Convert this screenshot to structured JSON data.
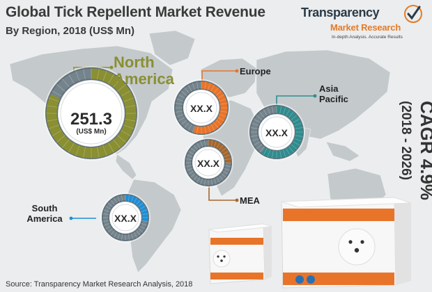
{
  "header": {
    "title": "Global Tick Repellent Market Revenue",
    "subtitle": "By Region, 2018 (US$ Mn)"
  },
  "logo": {
    "word1": "Transparency",
    "word2": "Market Research",
    "tagline": "In-depth Analysis. Accurate Results"
  },
  "cagr": {
    "label": "CAGR 4.9%",
    "period": "(2018 - 2026)"
  },
  "source": "Source: Transparency Market Research Analysis, 2018",
  "colors": {
    "north_america": "#8a8f32",
    "europe": "#e8742a",
    "asia_pacific": "#2f8d8f",
    "mea": "#a8662b",
    "south_america": "#1e8fd6",
    "map": "#c4c9cc",
    "gauge_ring": "#5d6f78"
  },
  "chart_data": {
    "type": "gauge",
    "title": "Global Tick Repellent Market Revenue",
    "subtitle": "By Region, 2018 (US$ Mn)",
    "regions": [
      {
        "key": "north_america",
        "name": "North America",
        "value_text": "251.3",
        "unit": "(US$ Mn)",
        "fill": 0.82
      },
      {
        "key": "europe",
        "name": "Europe",
        "value_text": "XX.X",
        "fill": 0.55
      },
      {
        "key": "asia_pacific",
        "name": "Asia Pacific",
        "value_text": "XX.X",
        "fill": 0.6
      },
      {
        "key": "mea",
        "name": "MEA",
        "value_text": "XX.X",
        "fill": 0.25
      },
      {
        "key": "south_america",
        "name": "South America",
        "value_text": "XX.X",
        "fill": 0.28
      }
    ],
    "cagr": "CAGR 4.9%",
    "period": "(2018 - 2026)"
  }
}
